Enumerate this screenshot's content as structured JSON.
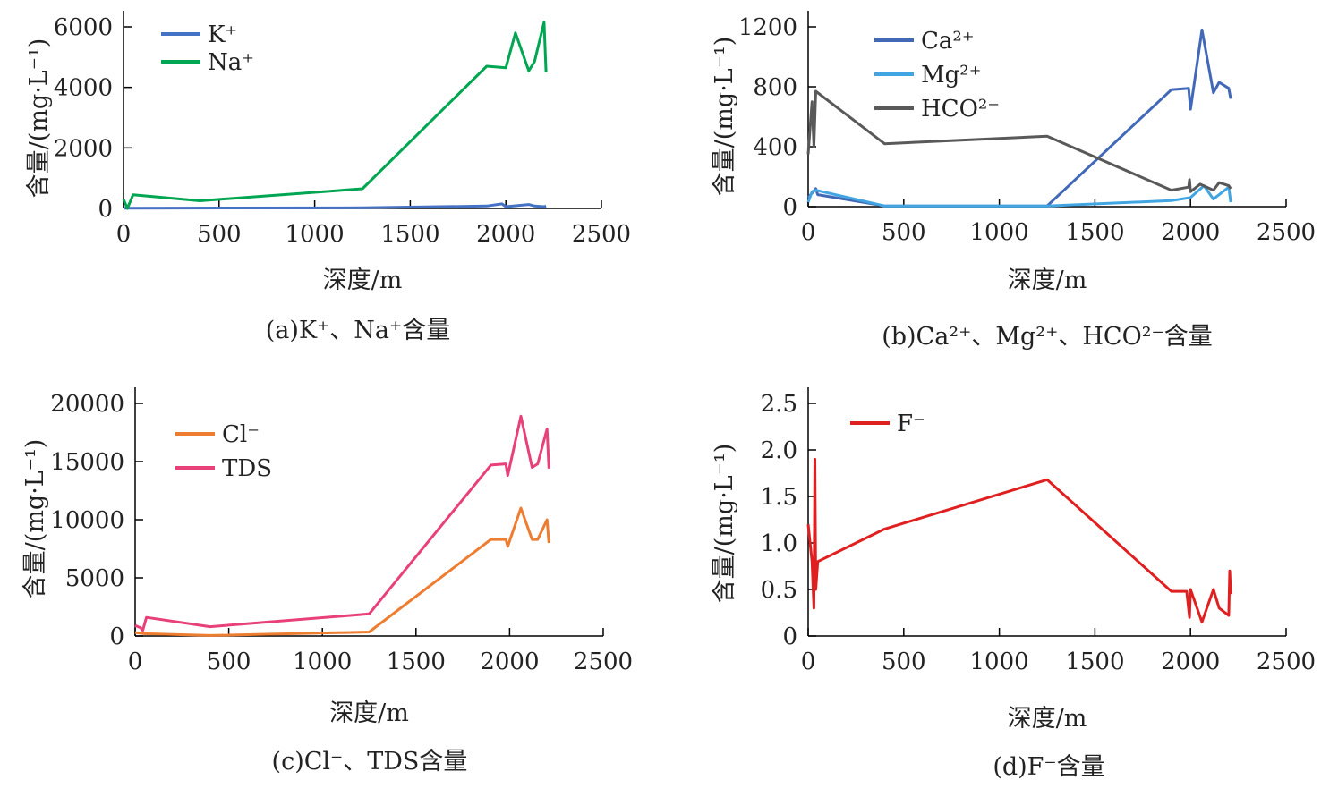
{
  "chart_data": [
    {
      "type": "line",
      "caption": "(a)K⁺、Na⁺含量",
      "xlabel": "深度/m",
      "ylabel": "含量/(mg·L⁻¹)",
      "xlim": [
        0,
        2500
      ],
      "ylim": [
        0,
        6000
      ],
      "xticks": [
        0,
        500,
        1000,
        1500,
        2000,
        2500
      ],
      "yticks": [
        0,
        2000,
        4000,
        6000
      ],
      "legend": "top-left",
      "series": [
        {
          "name": "K⁺",
          "color": "#4472c4",
          "x": [
            0,
            1250,
            1900,
            1980,
            2000,
            2120,
            2150,
            2200,
            2210
          ],
          "y": [
            10,
            20,
            80,
            150,
            60,
            130,
            80,
            60,
            80
          ]
        },
        {
          "name": "Na⁺",
          "color": "#00a651",
          "x": [
            0,
            20,
            50,
            400,
            1250,
            1900,
            2000,
            2050,
            2120,
            2150,
            2200,
            2210
          ],
          "y": [
            300,
            0,
            450,
            250,
            650,
            4700,
            4650,
            5800,
            4550,
            4850,
            6150,
            4500
          ]
        }
      ]
    },
    {
      "type": "line",
      "caption": "(b)Ca²⁺、Mg²⁺、HCO²⁻含量",
      "xlabel": "深度/m",
      "ylabel": "含量/(mg·L⁻¹)",
      "xlim": [
        0,
        2500
      ],
      "ylim": [
        0,
        1200
      ],
      "xticks": [
        0,
        500,
        1000,
        1500,
        2000,
        2500
      ],
      "yticks": [
        0,
        400,
        800,
        1200
      ],
      "legend": "top-left",
      "series": [
        {
          "name": "Ca²⁺",
          "color": "#4169b8",
          "x": [
            0,
            40,
            50,
            400,
            1250,
            1900,
            1990,
            2000,
            2060,
            2120,
            2150,
            2200,
            2210
          ],
          "y": [
            60,
            120,
            80,
            5,
            5,
            780,
            790,
            650,
            1180,
            760,
            830,
            790,
            720
          ]
        },
        {
          "name": "Mg²⁺",
          "color": "#41a5e1",
          "x": [
            0,
            20,
            40,
            400,
            1250,
            1900,
            2000,
            2070,
            2120,
            2200,
            2210
          ],
          "y": [
            30,
            100,
            110,
            5,
            5,
            40,
            60,
            140,
            50,
            130,
            30
          ]
        },
        {
          "name": "HCO²⁻",
          "color": "#595959",
          "x": [
            0,
            20,
            30,
            40,
            400,
            1250,
            1900,
            1990,
            1995,
            2000,
            2050,
            2120,
            2150,
            2200,
            2210
          ],
          "y": [
            350,
            700,
            400,
            770,
            420,
            470,
            110,
            130,
            180,
            100,
            150,
            110,
            160,
            140,
            120
          ]
        }
      ]
    },
    {
      "type": "line",
      "caption": "(c)Cl⁻、TDS含量",
      "xlabel": "深度/m",
      "ylabel": "含量/(mg·L⁻¹)",
      "xlim": [
        0,
        2500
      ],
      "ylim": [
        0,
        20000
      ],
      "xticks": [
        0,
        500,
        1000,
        1500,
        2000,
        2500
      ],
      "yticks": [
        0,
        5000,
        10000,
        15000,
        20000
      ],
      "legend": "top-left",
      "series": [
        {
          "name": "Cl⁻",
          "color": "#ed7d31",
          "x": [
            0,
            50,
            400,
            1250,
            1900,
            1980,
            1990,
            2060,
            2120,
            2150,
            2200,
            2210
          ],
          "y": [
            300,
            200,
            50,
            350,
            8300,
            8300,
            7700,
            11000,
            8300,
            8300,
            10000,
            8000
          ]
        },
        {
          "name": "TDS",
          "color": "#e8417a",
          "x": [
            0,
            30,
            40,
            60,
            400,
            1250,
            1900,
            1980,
            1990,
            2060,
            2120,
            2150,
            2200,
            2210
          ],
          "y": [
            900,
            700,
            450,
            1600,
            800,
            1900,
            14700,
            14800,
            13800,
            18900,
            14500,
            14800,
            17800,
            14400
          ]
        }
      ]
    },
    {
      "type": "line",
      "caption": "(d)F⁻含量",
      "xlabel": "深度/m",
      "ylabel": "含量/(mg·L⁻¹)",
      "xlim": [
        0,
        2500
      ],
      "ylim": [
        0,
        2.5
      ],
      "xticks": [
        0,
        500,
        1000,
        1500,
        2000,
        2500
      ],
      "yticks": [
        0,
        0.5,
        1.0,
        1.5,
        2.0,
        2.5
      ],
      "ytick_labels": [
        "0",
        "0.5",
        "1.0",
        "1.5",
        "2.0",
        "2.5"
      ],
      "legend": "top-left",
      "series": [
        {
          "name": "F⁻",
          "color": "#e02020",
          "x": [
            0,
            20,
            30,
            35,
            40,
            50,
            400,
            1250,
            1900,
            1980,
            1995,
            2000,
            2060,
            2120,
            2150,
            2200,
            2205,
            2210
          ],
          "y": [
            1.2,
            0.8,
            0.3,
            1.9,
            0.5,
            0.8,
            1.15,
            1.68,
            0.48,
            0.48,
            0.2,
            0.5,
            0.15,
            0.5,
            0.3,
            0.22,
            0.7,
            0.45
          ]
        }
      ]
    }
  ]
}
